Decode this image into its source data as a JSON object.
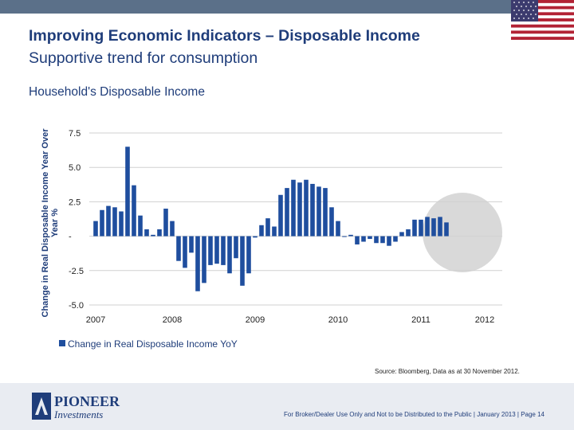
{
  "header": {
    "title": "Improving Economic Indicators – Disposable Income",
    "subtitle": "Supportive trend for consumption"
  },
  "source": "Source: Bloomberg, Data as at 30 November 2012.",
  "footer": {
    "brand": "PIONEER",
    "brand_sub": "Investments",
    "disclaimer": "For Broker/Dealer Use Only and Not to be Distributed to the Public | January 2013 | Page 14"
  },
  "colors": {
    "bar": "#1f4e9e",
    "title": "#1f3d7a",
    "highlight": "#d9d9d9",
    "topbar": "#5b7089"
  },
  "chart_data": {
    "type": "bar",
    "title": "Household's Disposable Income",
    "ylabel": "Change in Real Disposable Income Year Over Year %",
    "ylim": [
      -5,
      9
    ],
    "yticks": [
      {
        "value": 7.5,
        "label": "7.5"
      },
      {
        "value": 5,
        "label": "5.0"
      },
      {
        "value": 2.5,
        "label": "2.5"
      },
      {
        "value": 0,
        "label": "-"
      },
      {
        "value": -2.5,
        "label": "-2.5"
      },
      {
        "value": -5,
        "label": "-5.0"
      }
    ],
    "xticks": [
      {
        "index": 0,
        "label": "2007"
      },
      {
        "index": 12,
        "label": "2008"
      },
      {
        "index": 25,
        "label": "2009"
      },
      {
        "index": 38,
        "label": "2010"
      },
      {
        "index": 51,
        "label": "2011"
      },
      {
        "index": 61,
        "label": "2012"
      }
    ],
    "highlight_range": [
      53,
      62
    ],
    "legend": "Change in Real Disposable Income YoY",
    "series": [
      {
        "name": "Change in Real Disposable Income YoY",
        "values": [
          1.1,
          1.9,
          2.2,
          2.1,
          1.8,
          6.5,
          3.7,
          1.5,
          0.5,
          0.1,
          0.5,
          2.0,
          1.1,
          -1.8,
          -2.3,
          -1.2,
          -4.0,
          -3.4,
          -2.1,
          -2.0,
          -2.1,
          -2.7,
          -1.6,
          -3.6,
          -2.7,
          -0.1,
          0.8,
          1.3,
          0.7,
          3.0,
          3.5,
          4.1,
          3.9,
          4.1,
          3.8,
          3.6,
          3.5,
          2.1,
          1.1,
          0.0,
          0.1,
          -0.6,
          -0.4,
          -0.2,
          -0.5,
          -0.5,
          -0.7,
          -0.4,
          0.3,
          0.5,
          1.2,
          1.2,
          1.4,
          1.3,
          1.4,
          1.0
        ]
      }
    ]
  }
}
